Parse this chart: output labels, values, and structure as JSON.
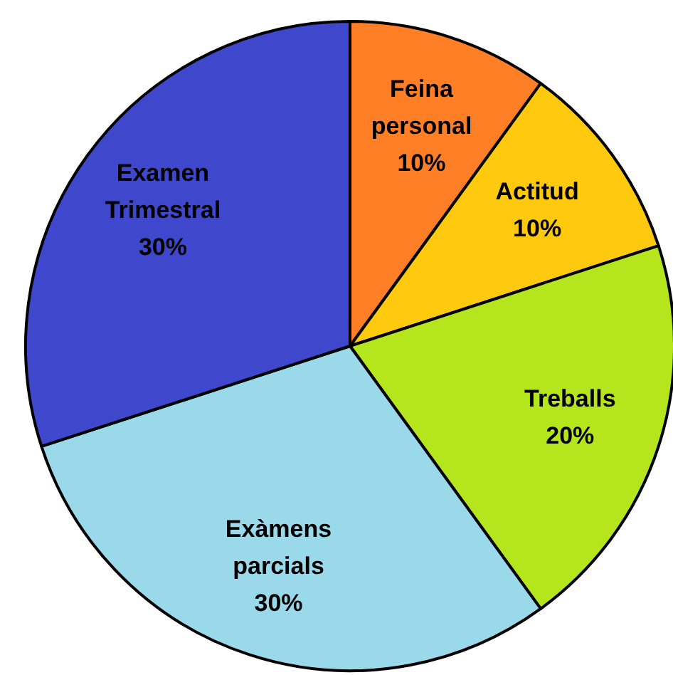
{
  "chart_data": {
    "type": "pie",
    "categories": [
      "Feina personal",
      "Actitud",
      "Treballs",
      "Exàmens parcials",
      "Examen Trimestral"
    ],
    "values": [
      10,
      10,
      20,
      30,
      30
    ],
    "value_labels": [
      "10%",
      "10%",
      "20%",
      "30%",
      "30%"
    ],
    "colors": [
      "#ff7f27",
      "#ffc90e",
      "#b5e61d",
      "#99d9ea",
      "#3f48cc"
    ],
    "legend": false
  }
}
